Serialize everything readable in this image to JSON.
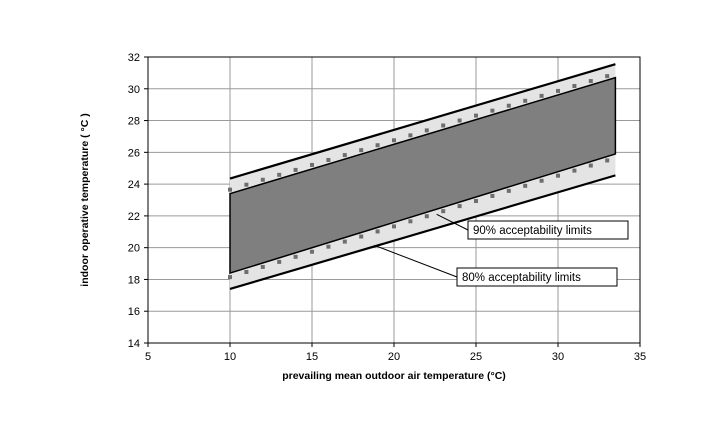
{
  "chart_data": {
    "type": "line",
    "xlabel": "prevailing mean outdoor air temperature (°C)",
    "ylabel": "indoor operative temperature ( °C )",
    "xlim": [
      5,
      35
    ],
    "ylim": [
      14,
      32
    ],
    "x_ticks": [
      5,
      10,
      15,
      20,
      25,
      30,
      35
    ],
    "y_ticks": [
      14,
      16,
      18,
      20,
      22,
      24,
      26,
      28,
      30,
      32
    ],
    "grid": true,
    "x_range": [
      10,
      33.5
    ],
    "band_80": {
      "lower": [
        [
          10,
          17.4
        ],
        [
          33.5,
          24.55
        ]
      ],
      "upper": [
        [
          10,
          24.35
        ],
        [
          33.5,
          31.55
        ]
      ]
    },
    "band_90": {
      "lower": [
        [
          10,
          18.4
        ],
        [
          33.5,
          25.9
        ]
      ],
      "upper": [
        [
          10,
          23.4
        ],
        [
          33.5,
          30.7
        ]
      ]
    },
    "lower_points_x": [
      10,
      11,
      12,
      13,
      14,
      15,
      16,
      17,
      18,
      19,
      20,
      21,
      22,
      23,
      24,
      25,
      26,
      27,
      28,
      29,
      30,
      31,
      32,
      33
    ],
    "upper_points_x": [
      10,
      11,
      12,
      13,
      14,
      15,
      16,
      17,
      18,
      19,
      20,
      21,
      22,
      23,
      24,
      25,
      26,
      27,
      28,
      29,
      30,
      31,
      32,
      33
    ],
    "annotations": [
      {
        "text": "90% acceptability limits",
        "target": [
          22.6,
          22.1
        ]
      },
      {
        "text": "80% acceptability limits",
        "target": [
          18.8,
          20.15
        ]
      }
    ]
  }
}
